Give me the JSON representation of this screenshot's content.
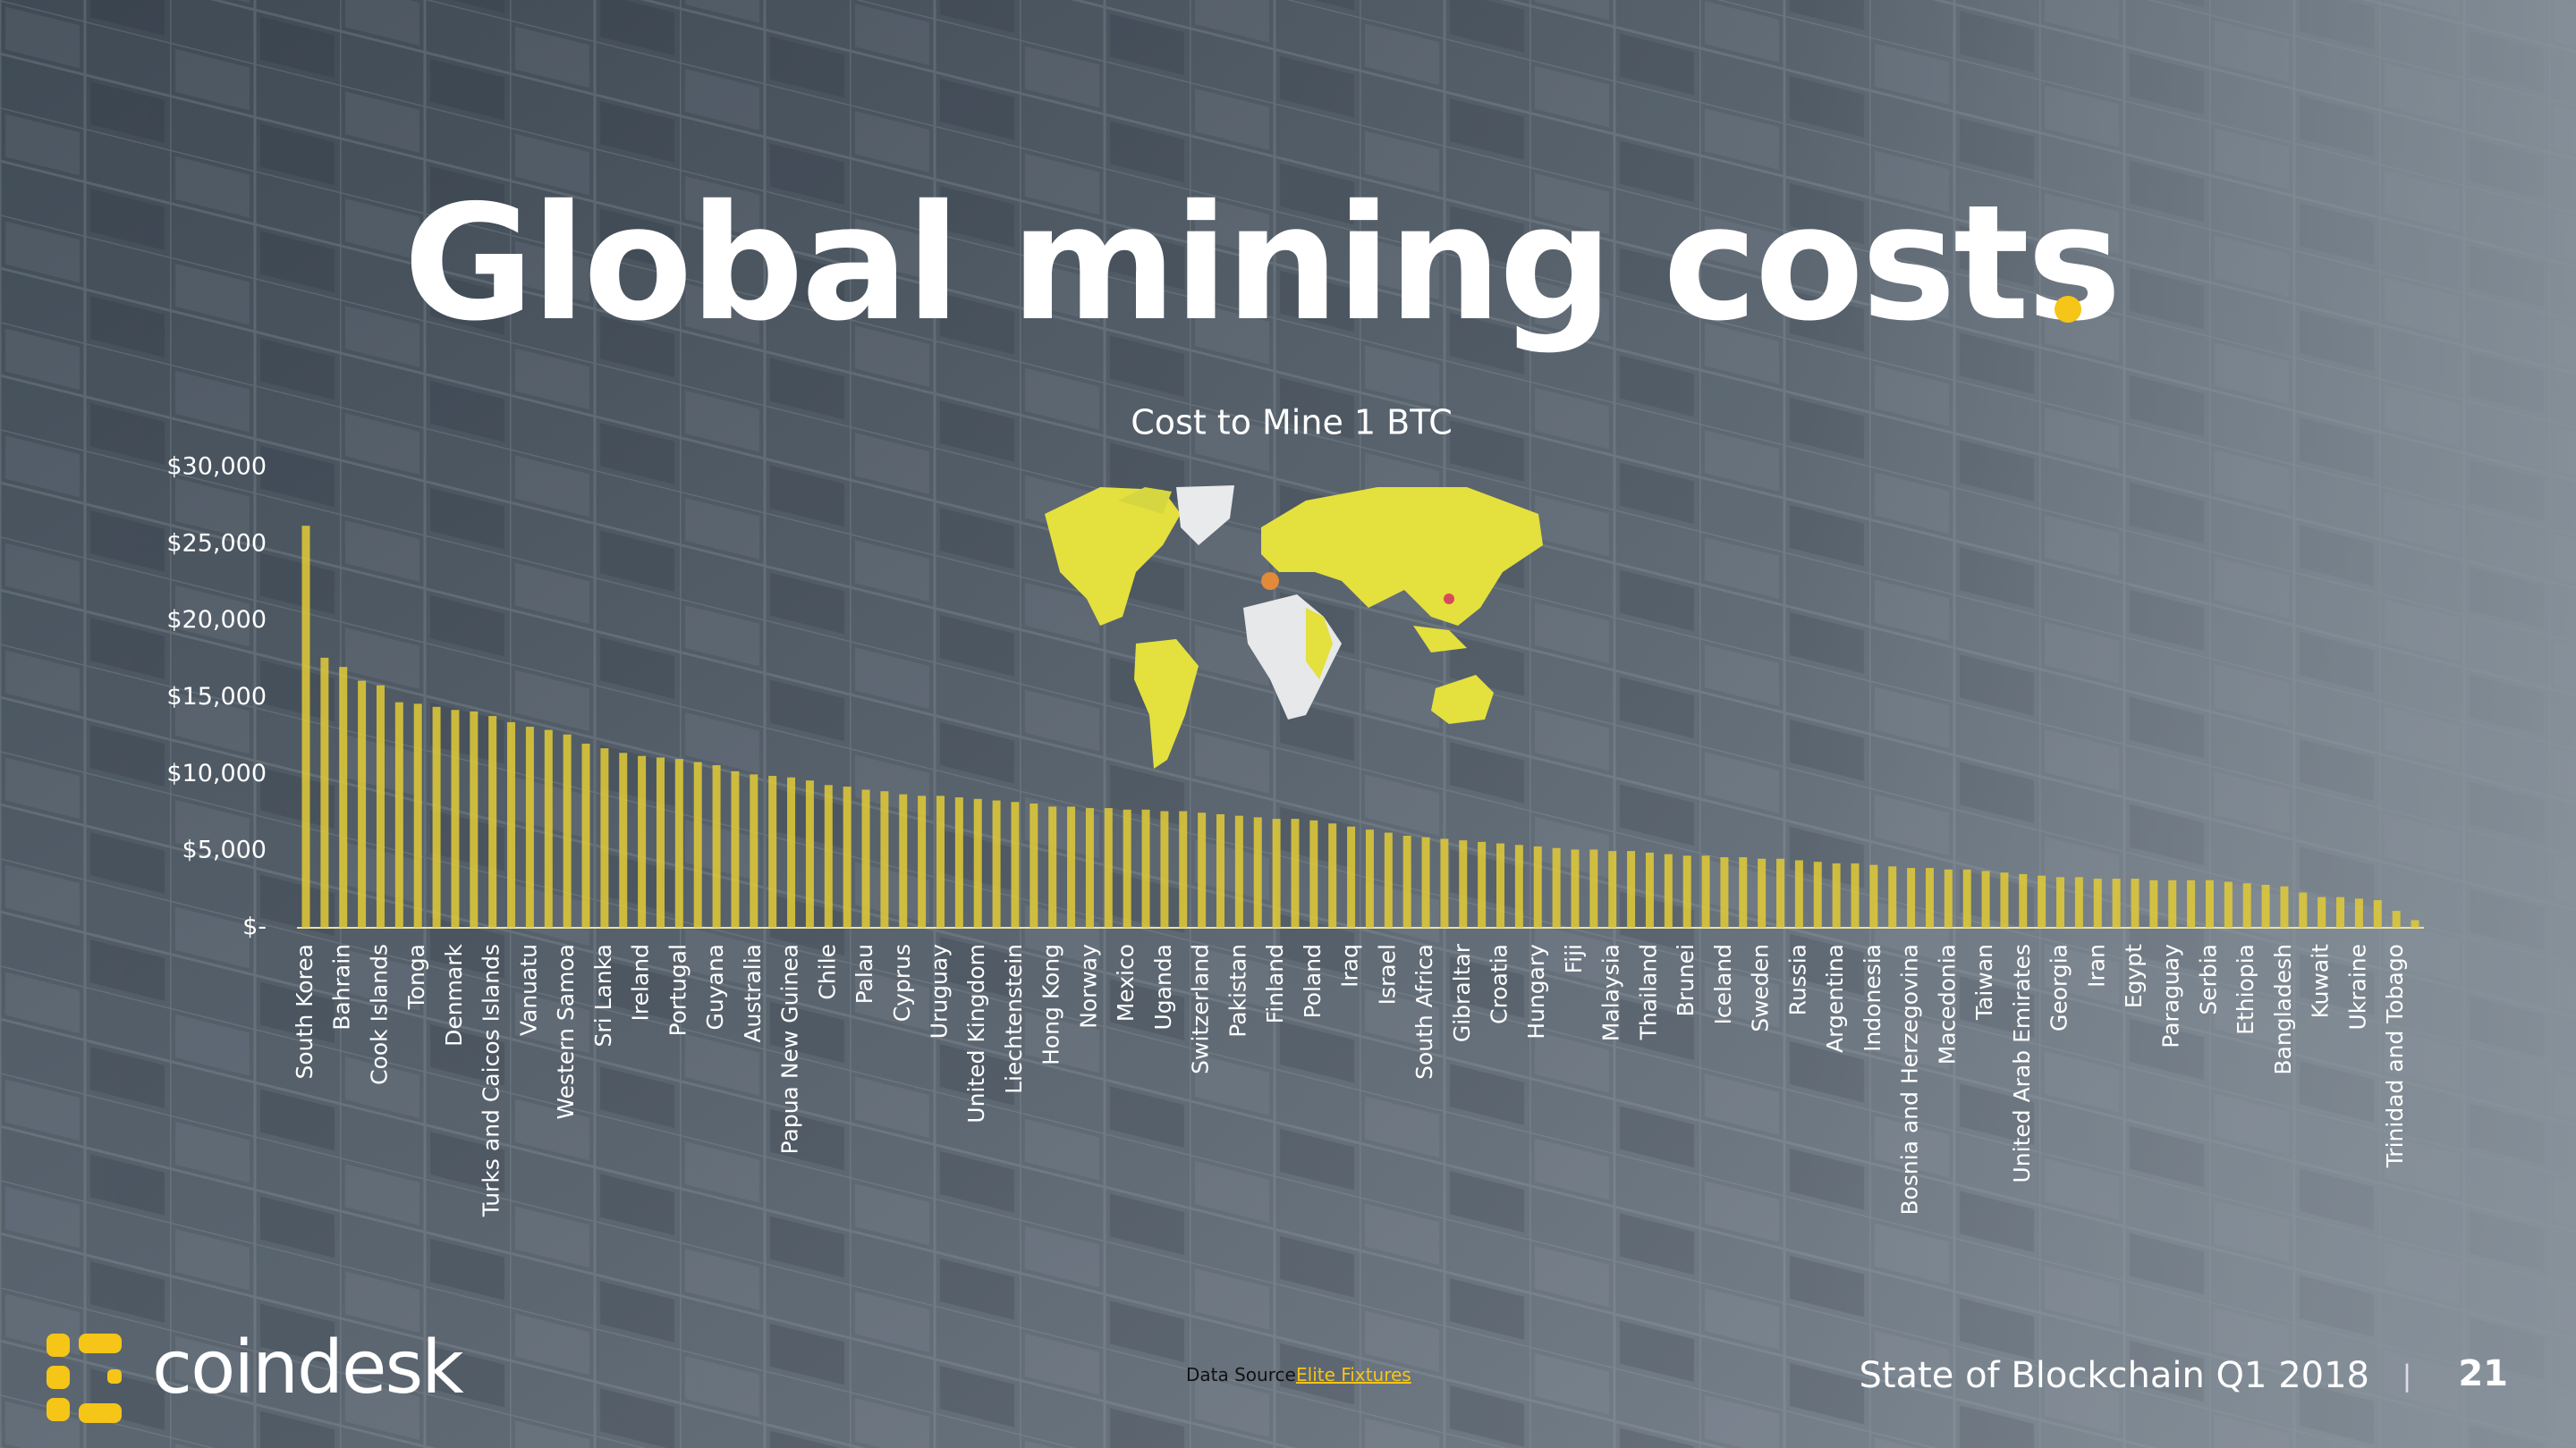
{
  "title": "Global mining costs",
  "footer": {
    "logo": "coindesk",
    "source_label": "Data Source:",
    "source_link": "Elite Fixtures",
    "report": "State of Blockchain Q1 2018",
    "separator": "|",
    "page": "21"
  },
  "chart_data": {
    "type": "bar",
    "title": "Cost to Mine 1 BTC",
    "color": "#e2cb36",
    "categories": [
      "South Korea",
      null,
      "Bahrain",
      null,
      "Cook Islands",
      null,
      "Tonga",
      null,
      "Denmark",
      null,
      "Turks and Caicos Islands",
      null,
      "Vanuatu",
      null,
      "Western Samoa",
      null,
      "Sri Lanka",
      null,
      "Ireland",
      null,
      "Portugal",
      null,
      "Guyana",
      null,
      "Australia",
      null,
      "Papua New Guinea",
      null,
      "Chile",
      null,
      "Palau",
      null,
      "Cyprus",
      null,
      "Uruguay",
      null,
      "United Kingdom",
      null,
      "Liechtenstein",
      null,
      "Hong Kong",
      null,
      "Norway",
      null,
      "Mexico",
      null,
      "Uganda",
      null,
      "Switzerland",
      null,
      "Pakistan",
      null,
      "Finland",
      null,
      "Poland",
      null,
      "Iraq",
      null,
      "Israel",
      null,
      "South Africa",
      null,
      "Gibraltar",
      null,
      "Croatia",
      null,
      "Hungary",
      null,
      "Fiji",
      null,
      "Malaysia",
      null,
      "Thailand",
      null,
      "Brunei",
      null,
      "Iceland",
      null,
      "Sweden",
      null,
      "Russia",
      null,
      "Argentina",
      null,
      "Indonesia",
      null,
      "Bosnia and Herzegovina",
      null,
      "Macedonia",
      null,
      "Taiwan",
      null,
      "United Arab Emirates",
      null,
      "Georgia",
      null,
      "Iran",
      null,
      "Egypt",
      null,
      "Paraguay",
      null,
      "Serbia",
      null,
      "Ethiopia",
      null,
      "Bangladesh",
      null,
      "Kuwait",
      null,
      "Ukraine",
      null,
      "Trinidad and Tobago",
      null
    ],
    "values": [
      26200,
      17600,
      17000,
      16100,
      15800,
      14700,
      14600,
      14400,
      14200,
      14100,
      13800,
      13400,
      13100,
      12900,
      12600,
      12000,
      11700,
      11400,
      11200,
      11100,
      11000,
      10800,
      10600,
      10200,
      10000,
      9900,
      9800,
      9600,
      9300,
      9200,
      9000,
      8900,
      8700,
      8600,
      8600,
      8500,
      8400,
      8300,
      8200,
      8100,
      7900,
      7900,
      7800,
      7800,
      7700,
      7700,
      7600,
      7600,
      7500,
      7400,
      7300,
      7200,
      7100,
      7100,
      7000,
      6800,
      6600,
      6400,
      6200,
      6000,
      5900,
      5800,
      5700,
      5600,
      5500,
      5400,
      5300,
      5200,
      5100,
      5100,
      5000,
      5000,
      4900,
      4800,
      4700,
      4700,
      4600,
      4600,
      4500,
      4500,
      4400,
      4300,
      4200,
      4200,
      4100,
      4000,
      3900,
      3900,
      3800,
      3800,
      3700,
      3600,
      3500,
      3400,
      3300,
      3300,
      3200,
      3200,
      3200,
      3100,
      3100,
      3100,
      3100,
      3000,
      2900,
      2800,
      2700,
      2300,
      2000,
      2000,
      1900,
      1800,
      1100,
      500
    ],
    "ylim": [
      0,
      30000
    ],
    "yticks": [
      {
        "value": 0,
        "label": "$-"
      },
      {
        "value": 5000,
        "label": "$5,000"
      },
      {
        "value": 10000,
        "label": "$10,000"
      },
      {
        "value": 15000,
        "label": "$15,000"
      },
      {
        "value": 20000,
        "label": "$20,000"
      },
      {
        "value": 25000,
        "label": "$25,000"
      },
      {
        "value": 30000,
        "label": "$30,000"
      }
    ],
    "grid": false
  }
}
